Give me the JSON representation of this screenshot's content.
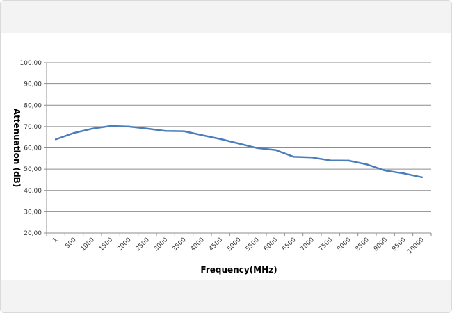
{
  "chart_data": {
    "type": "line",
    "title": "",
    "xlabel": "Frequency(MHz)",
    "ylabel": "Attenuation (dB)",
    "categories": [
      "1",
      "500",
      "1000",
      "1500",
      "2000",
      "2500",
      "3000",
      "3500",
      "4000",
      "4500",
      "5000",
      "5500",
      "6000",
      "6500",
      "7000",
      "7500",
      "8000",
      "8500",
      "9000",
      "9500",
      "10000"
    ],
    "series": [
      {
        "values": [
          64,
          67,
          69,
          70.3,
          70,
          69,
          67.9,
          67.8,
          65.9,
          64.1,
          62,
          59.9,
          59,
          55.8,
          55.5,
          54.1,
          54,
          52.2,
          49.3,
          48,
          46.2
        ],
        "color": "#4a7ebb"
      }
    ],
    "ylim": [
      20,
      100
    ],
    "yticks": [
      "20,00",
      "30,00",
      "40,00",
      "50,00",
      "60,00",
      "70,00",
      "80,00",
      "90,00",
      "100,00"
    ],
    "grid": true,
    "legend": "none"
  }
}
